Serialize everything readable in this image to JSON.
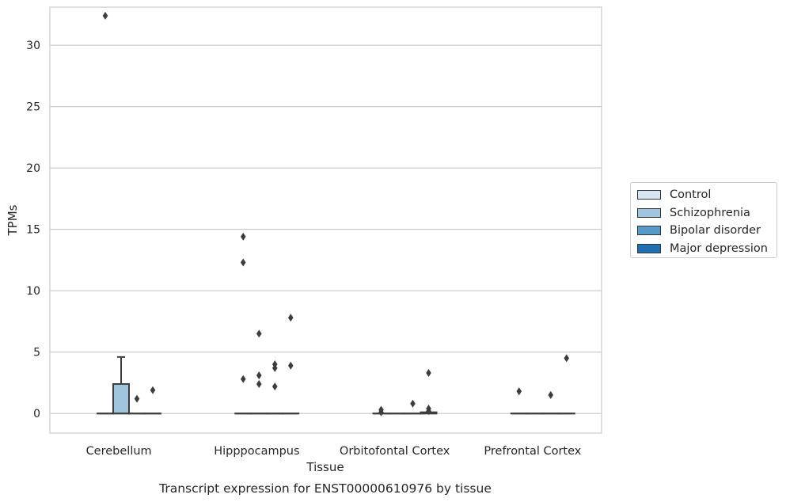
{
  "chart_data": {
    "type": "box",
    "title": "Transcript expression for ENST00000610976 by tissue",
    "xlabel": "Tissue",
    "ylabel": "TPMs",
    "categories": [
      "Cerebellum",
      "Hipppocampus",
      "Orbitofontal Cortex",
      "Prefrontal Cortex"
    ],
    "ylim": [
      -1.6,
      33.1
    ],
    "yticks": [
      0,
      5,
      10,
      15,
      20,
      25,
      30
    ],
    "grid": "horizontal",
    "legend_position": "right",
    "series": [
      {
        "name": "Control",
        "color": "#d6e5f3",
        "boxes": [
          {
            "q1": 0,
            "median": 0,
            "q3": 0,
            "whislo": 0,
            "whishi": 0,
            "fliers": [
              32.4
            ]
          },
          {
            "q1": 0,
            "median": 0,
            "q3": 0,
            "whislo": 0,
            "whishi": 0,
            "fliers": [
              2.8,
              14.4,
              12.3
            ]
          },
          {
            "q1": 0,
            "median": 0,
            "q3": 0,
            "whislo": 0,
            "whishi": 0,
            "fliers": [
              0.3,
              0.1
            ]
          },
          {
            "q1": 0,
            "median": 0,
            "q3": 0,
            "whislo": 0,
            "whishi": 0,
            "fliers": [
              1.8
            ]
          }
        ]
      },
      {
        "name": "Schizophrenia",
        "color": "#9fc5df",
        "boxes": [
          {
            "q1": 0,
            "median": 0,
            "q3": 2.4,
            "whislo": 0,
            "whishi": 4.6,
            "fliers": []
          },
          {
            "q1": 0,
            "median": 0,
            "q3": 0,
            "whislo": 0,
            "whishi": 0,
            "fliers": [
              2.4,
              3.1,
              6.5
            ]
          },
          {
            "q1": 0,
            "median": 0,
            "q3": 0,
            "whislo": 0,
            "whishi": 0,
            "fliers": []
          },
          {
            "q1": 0,
            "median": 0,
            "q3": 0,
            "whislo": 0,
            "whishi": 0,
            "fliers": []
          }
        ]
      },
      {
        "name": "Bipolar disorder",
        "color": "#5799c7",
        "boxes": [
          {
            "q1": 0,
            "median": 0,
            "q3": 0,
            "whislo": 0,
            "whishi": 0,
            "fliers": [
              1.2
            ]
          },
          {
            "q1": 0,
            "median": 0,
            "q3": 0,
            "whislo": 0,
            "whishi": 0,
            "fliers": [
              3.7,
              4.0,
              2.2
            ]
          },
          {
            "q1": 0,
            "median": 0,
            "q3": 0,
            "whislo": 0,
            "whishi": 0,
            "fliers": [
              0.8
            ]
          },
          {
            "q1": 0,
            "median": 0,
            "q3": 0,
            "whislo": 0,
            "whishi": 0,
            "fliers": [
              1.5
            ]
          }
        ]
      },
      {
        "name": "Major depression",
        "color": "#2070b4",
        "boxes": [
          {
            "q1": 0,
            "median": 0,
            "q3": 0,
            "whislo": 0,
            "whishi": 0,
            "fliers": [
              1.9
            ]
          },
          {
            "q1": 0,
            "median": 0,
            "q3": 0,
            "whislo": 0,
            "whishi": 0,
            "fliers": [
              7.8,
              3.9
            ]
          },
          {
            "q1": 0,
            "median": 0,
            "q3": 0.1,
            "whislo": 0,
            "whishi": 0.1,
            "fliers": [
              3.3,
              0.4,
              0.2
            ]
          },
          {
            "q1": 0,
            "median": 0,
            "q3": 0,
            "whislo": 0,
            "whishi": 0,
            "fliers": [
              4.5
            ]
          }
        ]
      }
    ]
  }
}
